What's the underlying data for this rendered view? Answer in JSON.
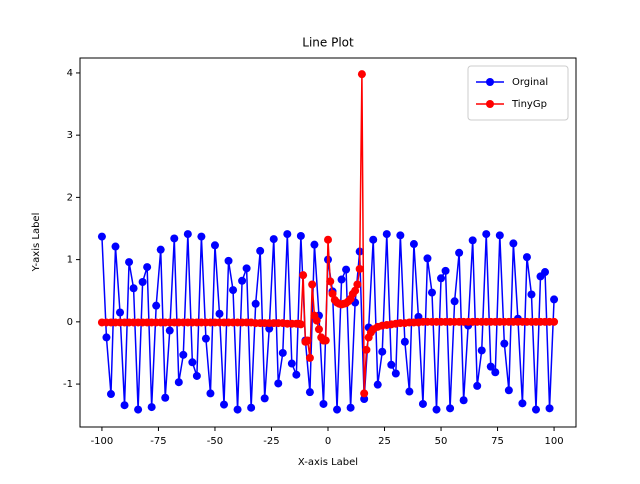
{
  "chart_data": {
    "type": "line",
    "title": "Line Plot",
    "x_label": "X-axis Label",
    "y_label": "Y-axis Label",
    "xlim": [
      -109.7,
      109.7
    ],
    "ylim": [
      -1.69,
      4.24
    ],
    "xticks": [
      -100,
      -75,
      -50,
      -25,
      0,
      25,
      50,
      75,
      100
    ],
    "yticks": [
      -1,
      0,
      1,
      2,
      3,
      4
    ],
    "legend": "upper right",
    "series": [
      {
        "name": "Orginal",
        "color": "#0000ff",
        "x": [
          -100,
          -98,
          -96,
          -94,
          -92,
          -90,
          -88,
          -86,
          -84,
          -82,
          -80,
          -78,
          -76,
          -74,
          -72,
          -70,
          -68,
          -66,
          -64,
          -62,
          -60,
          -58,
          -56,
          -54,
          -52,
          -50,
          -48,
          -46,
          -44,
          -42,
          -40,
          -38,
          -36,
          -34,
          -32,
          -30,
          -28,
          -26,
          -24,
          -22,
          -20,
          -18,
          -16,
          -14,
          -12,
          -10,
          -8,
          -6,
          -4,
          -2,
          0,
          2,
          4,
          6,
          8,
          10,
          12,
          14,
          16,
          18,
          20,
          22,
          24,
          26,
          28,
          30,
          32,
          34,
          36,
          38,
          40,
          42,
          44,
          46,
          48,
          50,
          52,
          54,
          56,
          58,
          60,
          62,
          64,
          66,
          68,
          70,
          72,
          74,
          76,
          78,
          80,
          82,
          84,
          86,
          88,
          90,
          92,
          94,
          96,
          98,
          100
        ],
        "values": [
          1.37,
          -0.25,
          -1.16,
          1.21,
          0.15,
          -1.34,
          0.96,
          0.54,
          -1.41,
          0.64,
          0.88,
          -1.37,
          0.26,
          1.16,
          -1.22,
          -0.14,
          1.34,
          -0.97,
          -0.53,
          1.41,
          -0.65,
          -0.87,
          1.37,
          -0.27,
          -1.15,
          1.23,
          0.13,
          -1.33,
          0.98,
          0.51,
          -1.41,
          0.66,
          0.86,
          -1.38,
          0.29,
          1.14,
          -1.23,
          -0.11,
          1.33,
          -0.99,
          -0.5,
          1.41,
          -0.67,
          -0.85,
          1.38,
          -0.3,
          -1.13,
          1.24,
          0.1,
          -1.32,
          1.0,
          0.49,
          -1.41,
          0.68,
          0.84,
          -1.38,
          0.31,
          1.13,
          -1.24,
          -0.09,
          1.32,
          -1.01,
          -0.48,
          1.41,
          -0.69,
          -0.83,
          1.39,
          -0.32,
          -1.12,
          1.25,
          0.08,
          -1.32,
          1.02,
          0.47,
          -1.41,
          0.7,
          0.82,
          -1.39,
          0.33,
          1.11,
          -1.26,
          -0.06,
          1.31,
          -1.03,
          -0.46,
          1.41,
          -0.72,
          -0.81,
          1.39,
          -0.35,
          -1.1,
          1.26,
          0.05,
          -1.31,
          1.04,
          0.44,
          -1.41,
          0.73,
          0.8,
          -1.39,
          0.36
        ]
      },
      {
        "name": "TinyGp",
        "color": "#ff0000",
        "x": [
          -100,
          -98,
          -96,
          -94,
          -92,
          -90,
          -88,
          -86,
          -84,
          -82,
          -80,
          -78,
          -76,
          -74,
          -72,
          -70,
          -68,
          -66,
          -64,
          -62,
          -60,
          -58,
          -56,
          -54,
          -52,
          -50,
          -48,
          -46,
          -44,
          -42,
          -40,
          -38,
          -36,
          -34,
          -32,
          -30,
          -28,
          -26,
          -24,
          -22,
          -20,
          -18,
          -16,
          -14,
          -13,
          -12,
          -11,
          -10,
          -9,
          -8,
          -7,
          -6,
          -5,
          -4,
          -3,
          -2,
          -1,
          0,
          1,
          2,
          3,
          4,
          5,
          6,
          7,
          8,
          9,
          10,
          11,
          12,
          13,
          14,
          15,
          16,
          17,
          18,
          19,
          20,
          22,
          24,
          26,
          28,
          30,
          32,
          34,
          36,
          38,
          40,
          42,
          44,
          46,
          48,
          50,
          52,
          54,
          56,
          58,
          60,
          62,
          64,
          66,
          68,
          70,
          72,
          74,
          76,
          78,
          80,
          82,
          84,
          86,
          88,
          90,
          92,
          94,
          96,
          98,
          100
        ],
        "values": [
          -0.01,
          -0.01,
          -0.01,
          -0.01,
          -0.01,
          -0.01,
          -0.01,
          -0.01,
          -0.01,
          -0.01,
          -0.01,
          -0.01,
          -0.01,
          -0.01,
          -0.01,
          -0.01,
          -0.01,
          -0.01,
          -0.01,
          -0.01,
          -0.01,
          -0.01,
          -0.01,
          -0.01,
          -0.01,
          -0.01,
          -0.01,
          -0.01,
          -0.01,
          -0.01,
          -0.01,
          -0.01,
          -0.01,
          -0.01,
          -0.02,
          -0.02,
          -0.02,
          -0.02,
          -0.02,
          -0.02,
          -0.02,
          -0.03,
          -0.03,
          -0.03,
          -0.03,
          -0.04,
          0.75,
          -0.32,
          -0.3,
          -0.58,
          0.6,
          0.1,
          0.02,
          -0.12,
          -0.25,
          -0.3,
          -0.3,
          1.32,
          0.65,
          0.45,
          0.35,
          0.31,
          0.29,
          0.28,
          0.29,
          0.3,
          0.33,
          0.37,
          0.45,
          0.5,
          0.6,
          0.85,
          3.98,
          -1.15,
          -0.45,
          -0.25,
          -0.17,
          -0.12,
          -0.08,
          -0.06,
          -0.05,
          -0.04,
          -0.03,
          -0.02,
          -0.02,
          -0.01,
          -0.01,
          -0.01,
          0.0,
          0.0,
          0.0,
          0.0,
          0.0,
          0.0,
          0.0,
          0.0,
          0.0,
          0.0,
          0.0,
          0.0,
          0.0,
          0.0,
          0.0,
          0.0,
          0.0,
          0.0,
          0.0,
          0.0,
          0.0,
          0.0,
          0.0,
          0.0,
          0.0,
          0.0,
          0.0,
          0.0,
          0.0,
          0.0
        ]
      }
    ]
  }
}
